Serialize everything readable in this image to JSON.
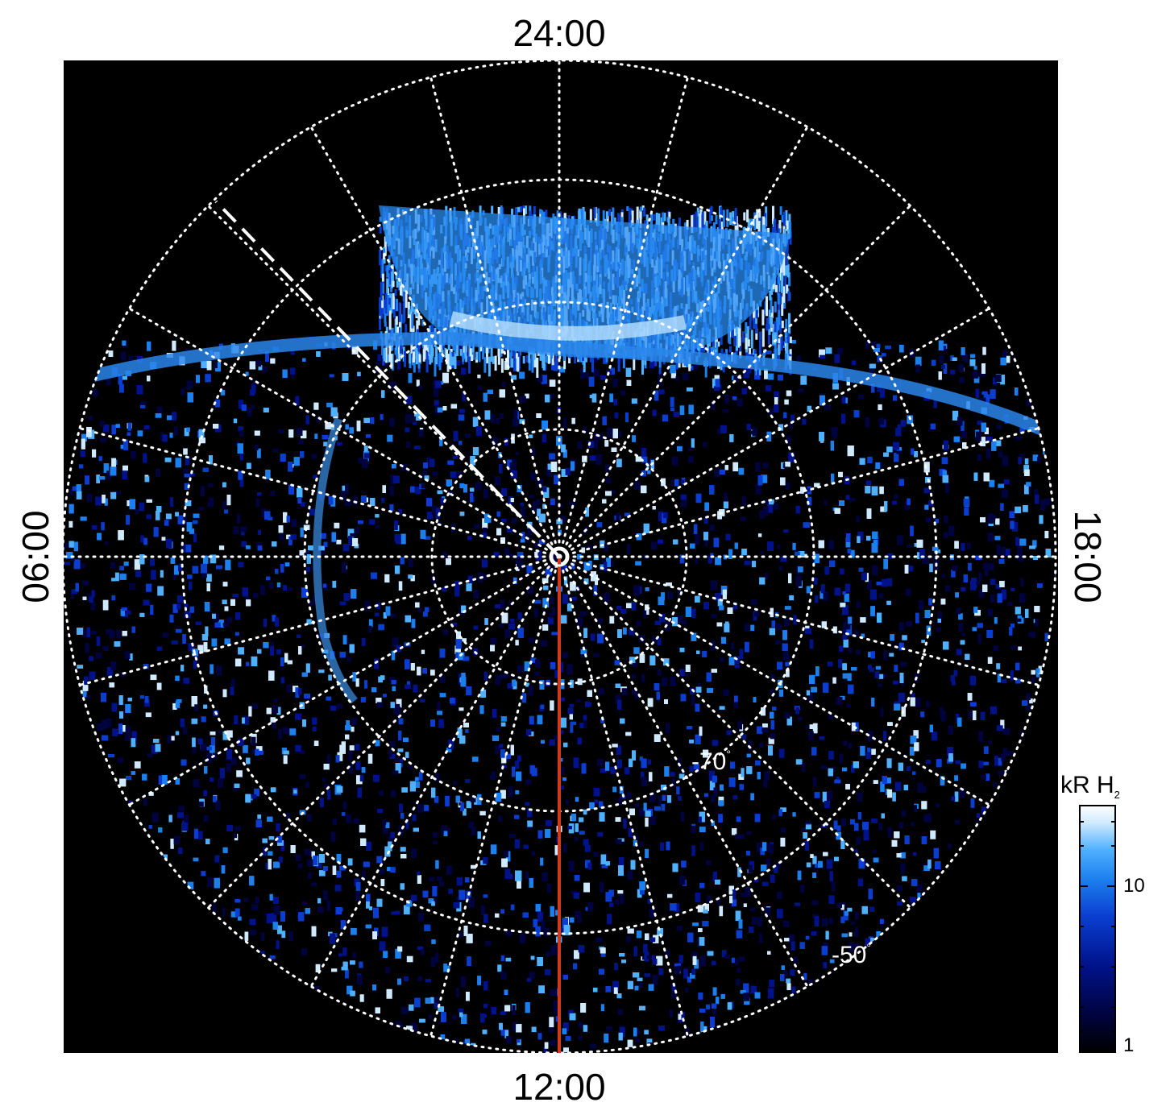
{
  "local_time_labels": {
    "top": "24:00",
    "bottom": "12:00",
    "left": "06:00",
    "right": "18:00"
  },
  "latitude_labels": {
    "lat_70": "-70",
    "lat_50": "-50",
    "degree_symbol": "°"
  },
  "colorbar": {
    "title": "kR H",
    "title_subscript": "2",
    "tick_10": "10",
    "tick_1": "1",
    "colors": [
      "#000000",
      "#00033d",
      "#00128a",
      "#0a3ed0",
      "#1c7fee",
      "#4fb0ff",
      "#cfeaff",
      "#ffffff"
    ]
  },
  "colors": {
    "background": "#000000",
    "grid": "#ffffff",
    "meridian_line": "#d03a1a",
    "dashed_line": "#ffffff"
  }
}
